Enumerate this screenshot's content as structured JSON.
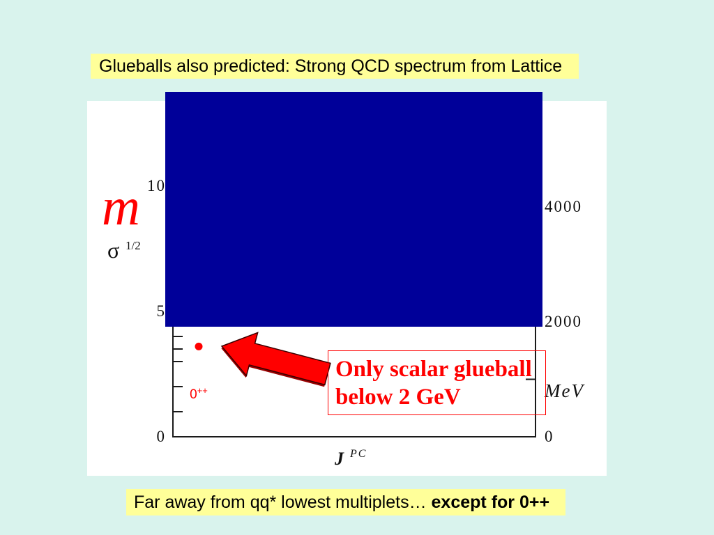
{
  "slide": {
    "title": "Glueballs also predicted: Strong QCD spectrum from Lattice",
    "callout": {
      "lines": [
        "Only scalar glueball",
        "below 2 GeV"
      ]
    },
    "footer": {
      "text": "Far away from qq* lowest multiplets… ",
      "emphasis": "except for 0++"
    },
    "colors": {
      "slide_background": "#d9f3ed",
      "label_box": "#ffff99",
      "figure_background": "#ffffff",
      "cover_block": "#000099",
      "highlight": "#ff0000"
    }
  },
  "chart_data": {
    "type": "scatter",
    "ylabel": {
      "numerator": "m",
      "denominator": "σ",
      "denominator_exponent": "1/2"
    },
    "xlabel": {
      "symbol": "J",
      "superscript": "PC"
    },
    "y_left": {
      "ticks": [
        0,
        5,
        10
      ],
      "tick_labels": [
        "0",
        "5",
        "10"
      ],
      "minor_ticks": [
        1,
        2,
        3,
        3.5,
        4
      ]
    },
    "y_right": {
      "unit": "MeV",
      "ticks": [
        0,
        2000,
        4000
      ],
      "tick_labels": [
        "0",
        "2000",
        "4000"
      ],
      "minor_ticks": [
        1000,
        3000
      ]
    },
    "categories": [
      {
        "base": "0",
        "superscript": "++"
      }
    ],
    "points": [
      {
        "category_index": 0,
        "y": 3.6,
        "color": "#ff0000"
      }
    ],
    "grid": false
  }
}
